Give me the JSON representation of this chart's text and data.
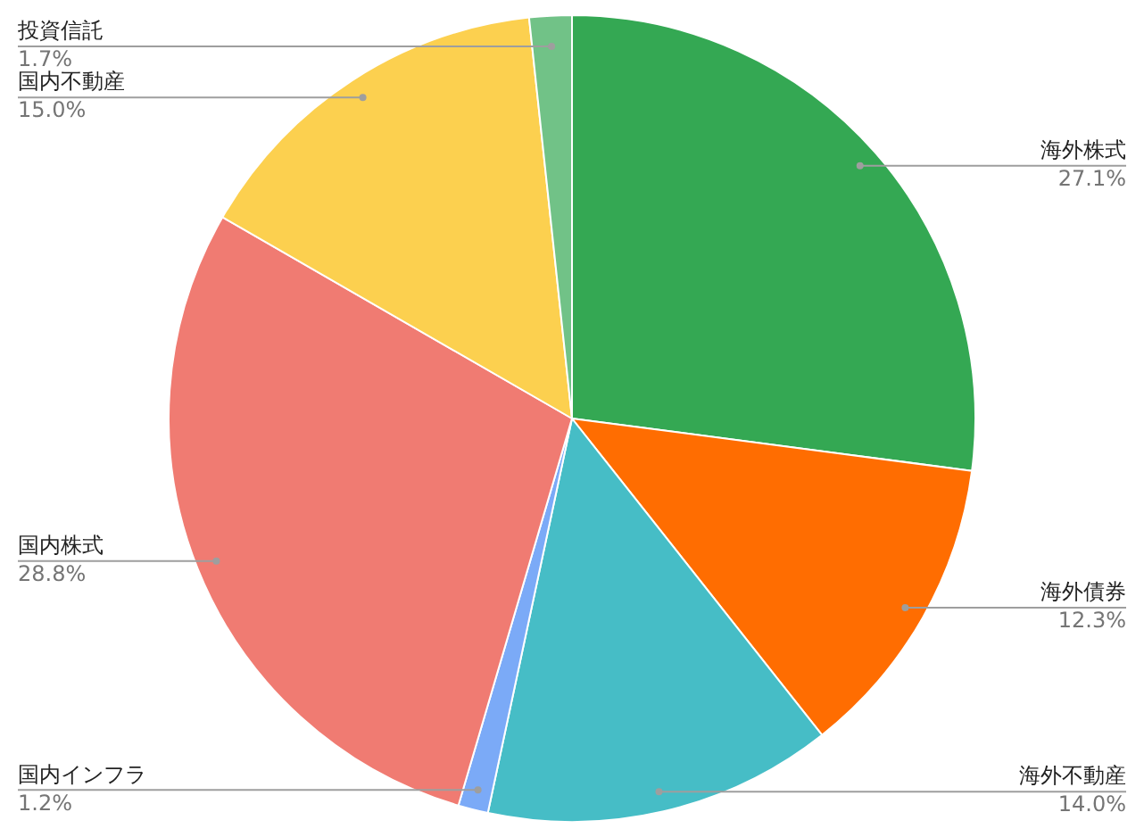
{
  "chart_data": {
    "type": "pie",
    "categories": [
      "海外株式",
      "海外債券",
      "海外不動産",
      "国内インフラ",
      "国内株式",
      "国内不動産",
      "投資信託"
    ],
    "values": [
      27.1,
      12.3,
      14.0,
      1.2,
      28.8,
      15.0,
      1.7
    ],
    "colors": [
      "#34a853",
      "#ff6d01",
      "#46bdc6",
      "#7baaf7",
      "#f07b72",
      "#fcd04f",
      "#71c287"
    ],
    "value_labels": [
      "27.1%",
      "12.3%",
      "14.0%",
      "1.2%",
      "28.8%",
      "15.0%",
      "1.7%"
    ],
    "legend": false
  }
}
